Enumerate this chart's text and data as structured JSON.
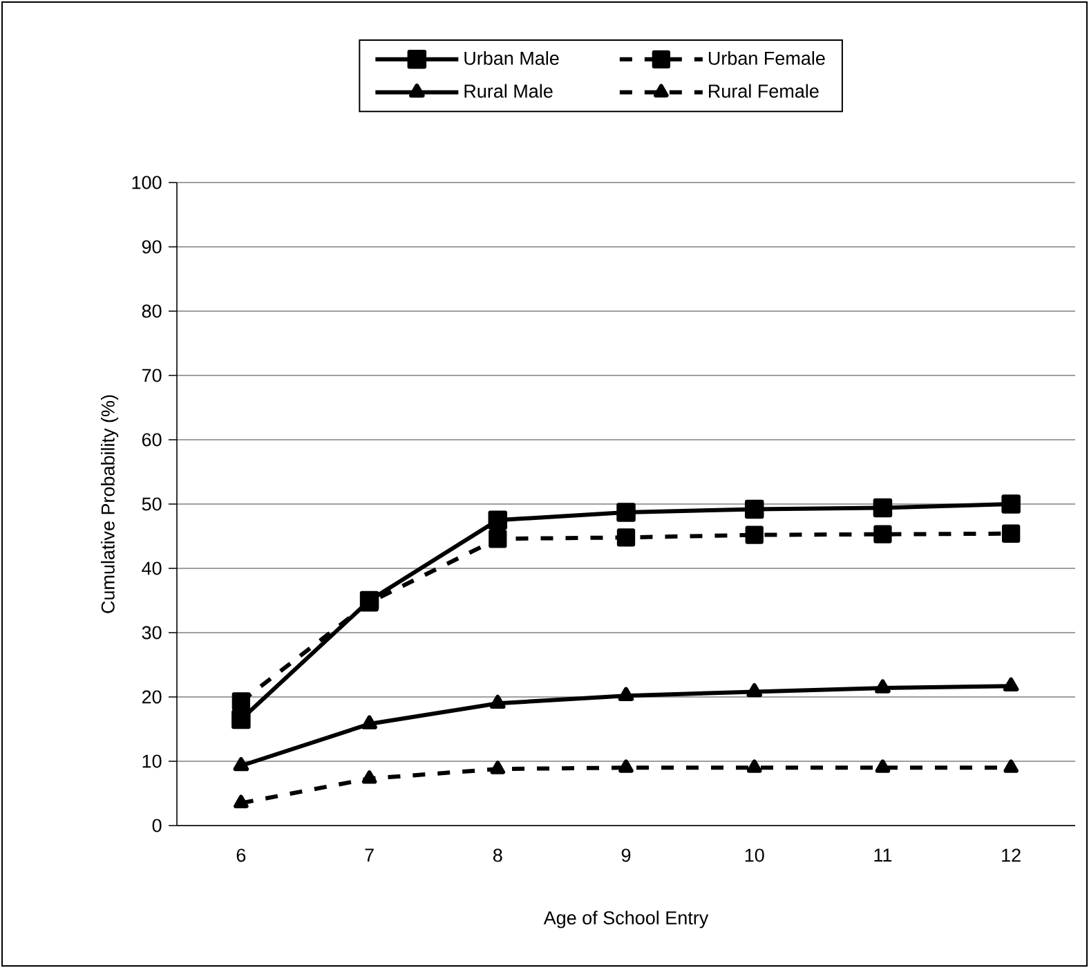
{
  "chart_data": {
    "type": "line",
    "xlabel": "Age of School Entry",
    "ylabel": "Cumulative Probability (%)",
    "categories": [
      "6",
      "7",
      "8",
      "9",
      "10",
      "11",
      "12"
    ],
    "series": [
      {
        "name": "Urban Male",
        "color": "#000000",
        "marker": "square",
        "line_style": "solid",
        "values": [
          16.5,
          35,
          47.5,
          48.7,
          49.2,
          49.4,
          50
        ]
      },
      {
        "name": "Urban Female",
        "color": "#000000",
        "marker": "square",
        "line_style": "dashed",
        "values": [
          19.3,
          34.7,
          44.6,
          44.8,
          45.2,
          45.3,
          45.4
        ]
      },
      {
        "name": "Rural Male",
        "color": "#000000",
        "marker": "triangle",
        "line_style": "solid",
        "values": [
          9.3,
          15.8,
          19,
          20.2,
          20.8,
          21.4,
          21.7
        ]
      },
      {
        "name": "Rural Female",
        "color": "#000000",
        "marker": "triangle",
        "line_style": "dashed",
        "values": [
          3.5,
          7.3,
          8.8,
          9,
          9,
          9,
          9
        ]
      }
    ],
    "ylim": [
      0,
      100
    ],
    "yticks": [
      0,
      10,
      20,
      30,
      40,
      50,
      60,
      70,
      80,
      90,
      100
    ],
    "grid": "y",
    "legend": "top"
  }
}
